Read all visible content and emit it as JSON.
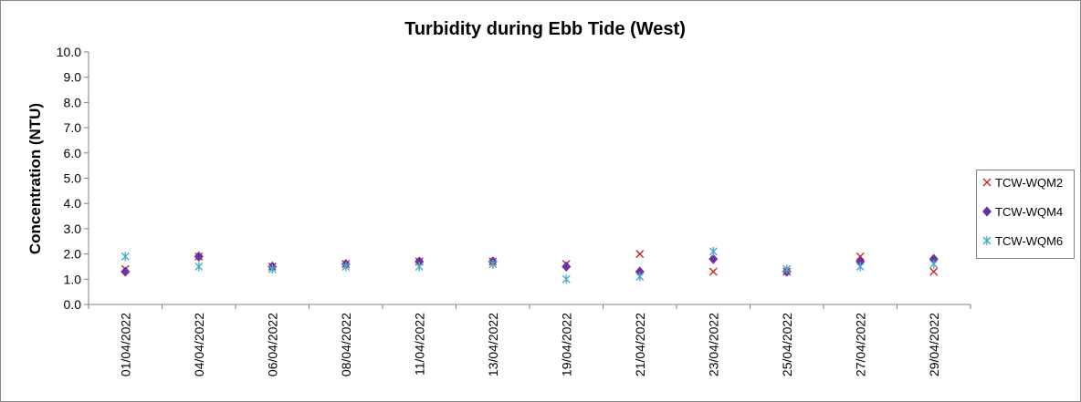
{
  "chart_data": {
    "type": "scatter",
    "title": "Turbidity during Ebb Tide (West)",
    "xlabel": "",
    "ylabel": "Concentration (NTU)",
    "ylim": [
      0,
      10
    ],
    "y_ticks": [
      "0.0",
      "1.0",
      "2.0",
      "3.0",
      "4.0",
      "5.0",
      "6.0",
      "7.0",
      "8.0",
      "9.0",
      "10.0"
    ],
    "categories": [
      "01/04/2022",
      "04/04/2022",
      "06/04/2022",
      "08/04/2022",
      "11/04/2022",
      "13/04/2022",
      "19/04/2022",
      "21/04/2022",
      "23/04/2022",
      "25/04/2022",
      "27/04/2022",
      "29/04/2022"
    ],
    "grid": false,
    "legend_position": "right",
    "series": [
      {
        "name": "TCW-WQM2",
        "marker": "x",
        "color": "#C0282D",
        "values": [
          1.4,
          1.9,
          1.5,
          1.6,
          1.7,
          1.7,
          1.6,
          2.0,
          1.3,
          1.3,
          1.9,
          1.3
        ]
      },
      {
        "name": "TCW-WQM4",
        "marker": "diamond",
        "color": "#7030A0",
        "values": [
          1.3,
          1.9,
          1.5,
          1.6,
          1.7,
          1.7,
          1.5,
          1.3,
          1.8,
          1.3,
          1.7,
          1.8
        ]
      },
      {
        "name": "TCW-WQM6",
        "marker": "star",
        "color": "#4BACC6",
        "values": [
          1.9,
          1.5,
          1.4,
          1.5,
          1.5,
          1.6,
          1.0,
          1.1,
          2.1,
          1.4,
          1.5,
          1.6
        ]
      }
    ]
  }
}
